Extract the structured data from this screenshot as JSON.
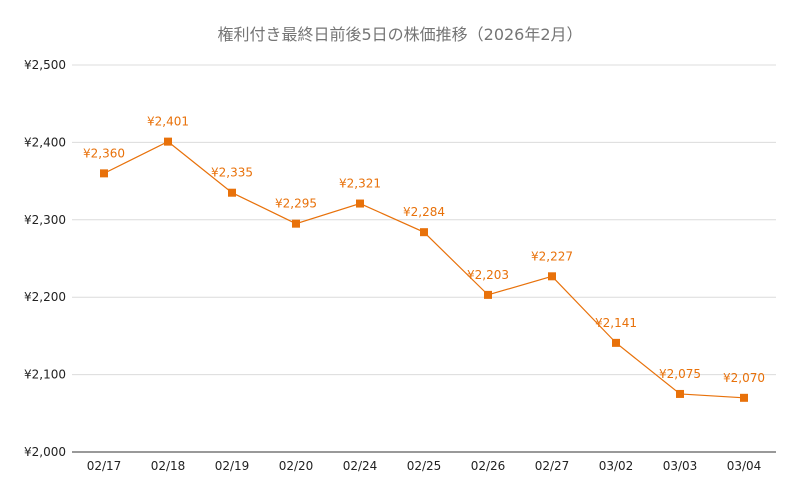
{
  "chart_data": {
    "type": "line",
    "title": "権利付き最終日前後5日の株価推移（2026年2月）",
    "xlabel": "",
    "ylabel": "",
    "categories": [
      "02/17",
      "02/18",
      "02/19",
      "02/20",
      "02/24",
      "02/25",
      "02/26",
      "02/27",
      "03/02",
      "03/03",
      "03/04"
    ],
    "series": [
      {
        "values": [
          2360,
          2401,
          2335,
          2295,
          2321,
          2284,
          2203,
          2227,
          2141,
          2075,
          2070
        ],
        "data_labels": [
          "¥2,360",
          "¥2,401",
          "¥2,335",
          "¥2,295",
          "¥2,321",
          "¥2,284",
          "¥2,203",
          "¥2,227",
          "¥2,141",
          "¥2,075",
          "¥2,070"
        ],
        "color": "#e8710a"
      }
    ],
    "ylim": [
      2000,
      2500
    ],
    "yticks": [
      2000,
      2100,
      2200,
      2300,
      2400,
      2500
    ],
    "ytick_labels": [
      "¥2,000",
      "¥2,100",
      "¥2,200",
      "¥2,300",
      "¥2,400",
      "¥2,500"
    ],
    "grid": true,
    "legend": "none",
    "marker": "square"
  }
}
